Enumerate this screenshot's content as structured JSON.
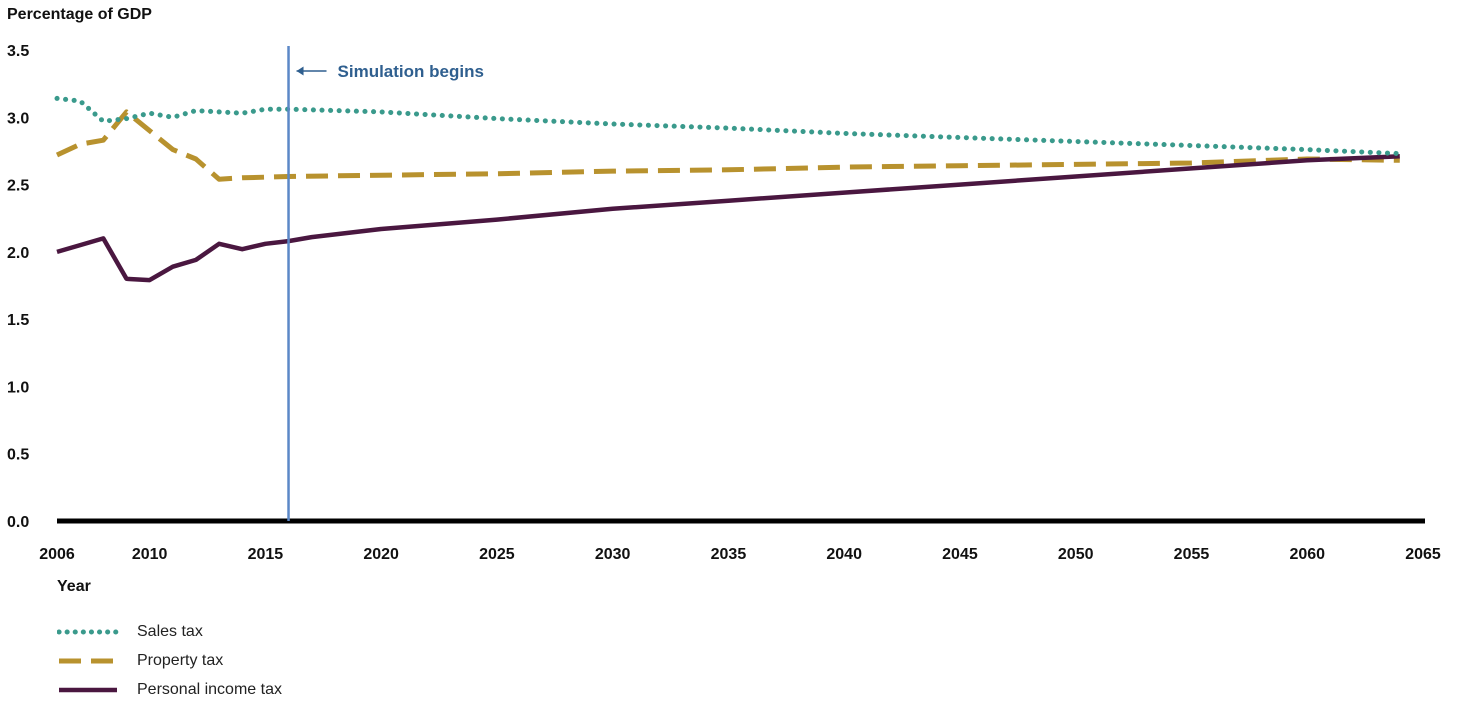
{
  "chart_data": {
    "type": "line",
    "ylabel": "Percentage of GDP",
    "xlabel": "Year",
    "xlim": [
      2006,
      2065
    ],
    "ylim": [
      0,
      3.5
    ],
    "x_ticks": [
      "2006",
      "2010",
      "2015",
      "2020",
      "2025",
      "2030",
      "2035",
      "2040",
      "2045",
      "2050",
      "2055",
      "2060",
      "2065"
    ],
    "y_ticks": [
      "0.0",
      "0.5",
      "1.0",
      "1.5",
      "2.0",
      "2.5",
      "3.0",
      "3.5"
    ],
    "annotation": {
      "text": "Simulation begins",
      "x": 2016
    },
    "grid": false,
    "legend_position": "bottom-left",
    "series": [
      {
        "name": "Sales tax",
        "color": "#3a9a8c",
        "style": "dotted",
        "points": [
          [
            2006,
            3.14
          ],
          [
            2007,
            3.12
          ],
          [
            2008,
            2.97
          ],
          [
            2009,
            2.99
          ],
          [
            2010,
            3.03
          ],
          [
            2011,
            3.0
          ],
          [
            2012,
            3.05
          ],
          [
            2013,
            3.04
          ],
          [
            2014,
            3.03
          ],
          [
            2015,
            3.06
          ],
          [
            2016,
            3.06
          ],
          [
            2020,
            3.04
          ],
          [
            2025,
            2.99
          ],
          [
            2030,
            2.95
          ],
          [
            2035,
            2.92
          ],
          [
            2040,
            2.88
          ],
          [
            2045,
            2.85
          ],
          [
            2050,
            2.82
          ],
          [
            2055,
            2.79
          ],
          [
            2060,
            2.76
          ],
          [
            2064,
            2.73
          ]
        ]
      },
      {
        "name": "Property tax",
        "color": "#b8922e",
        "style": "dashed",
        "points": [
          [
            2006,
            2.72
          ],
          [
            2007,
            2.8
          ],
          [
            2008,
            2.83
          ],
          [
            2009,
            3.04
          ],
          [
            2010,
            2.9
          ],
          [
            2011,
            2.76
          ],
          [
            2012,
            2.69
          ],
          [
            2013,
            2.54
          ],
          [
            2014,
            2.55
          ],
          [
            2016,
            2.56
          ],
          [
            2020,
            2.57
          ],
          [
            2025,
            2.58
          ],
          [
            2030,
            2.6
          ],
          [
            2035,
            2.61
          ],
          [
            2040,
            2.63
          ],
          [
            2045,
            2.64
          ],
          [
            2050,
            2.65
          ],
          [
            2055,
            2.66
          ],
          [
            2060,
            2.69
          ],
          [
            2064,
            2.68
          ]
        ]
      },
      {
        "name": "Personal income tax",
        "color": "#4a1740",
        "style": "solid",
        "points": [
          [
            2006,
            2.0
          ],
          [
            2007,
            2.05
          ],
          [
            2008,
            2.1
          ],
          [
            2009,
            1.8
          ],
          [
            2010,
            1.79
          ],
          [
            2011,
            1.89
          ],
          [
            2012,
            1.94
          ],
          [
            2013,
            2.06
          ],
          [
            2014,
            2.02
          ],
          [
            2015,
            2.06
          ],
          [
            2016,
            2.08
          ],
          [
            2017,
            2.11
          ],
          [
            2020,
            2.17
          ],
          [
            2025,
            2.24
          ],
          [
            2030,
            2.32
          ],
          [
            2035,
            2.38
          ],
          [
            2040,
            2.44
          ],
          [
            2045,
            2.5
          ],
          [
            2050,
            2.56
          ],
          [
            2055,
            2.62
          ],
          [
            2060,
            2.68
          ],
          [
            2064,
            2.71
          ]
        ]
      }
    ]
  }
}
